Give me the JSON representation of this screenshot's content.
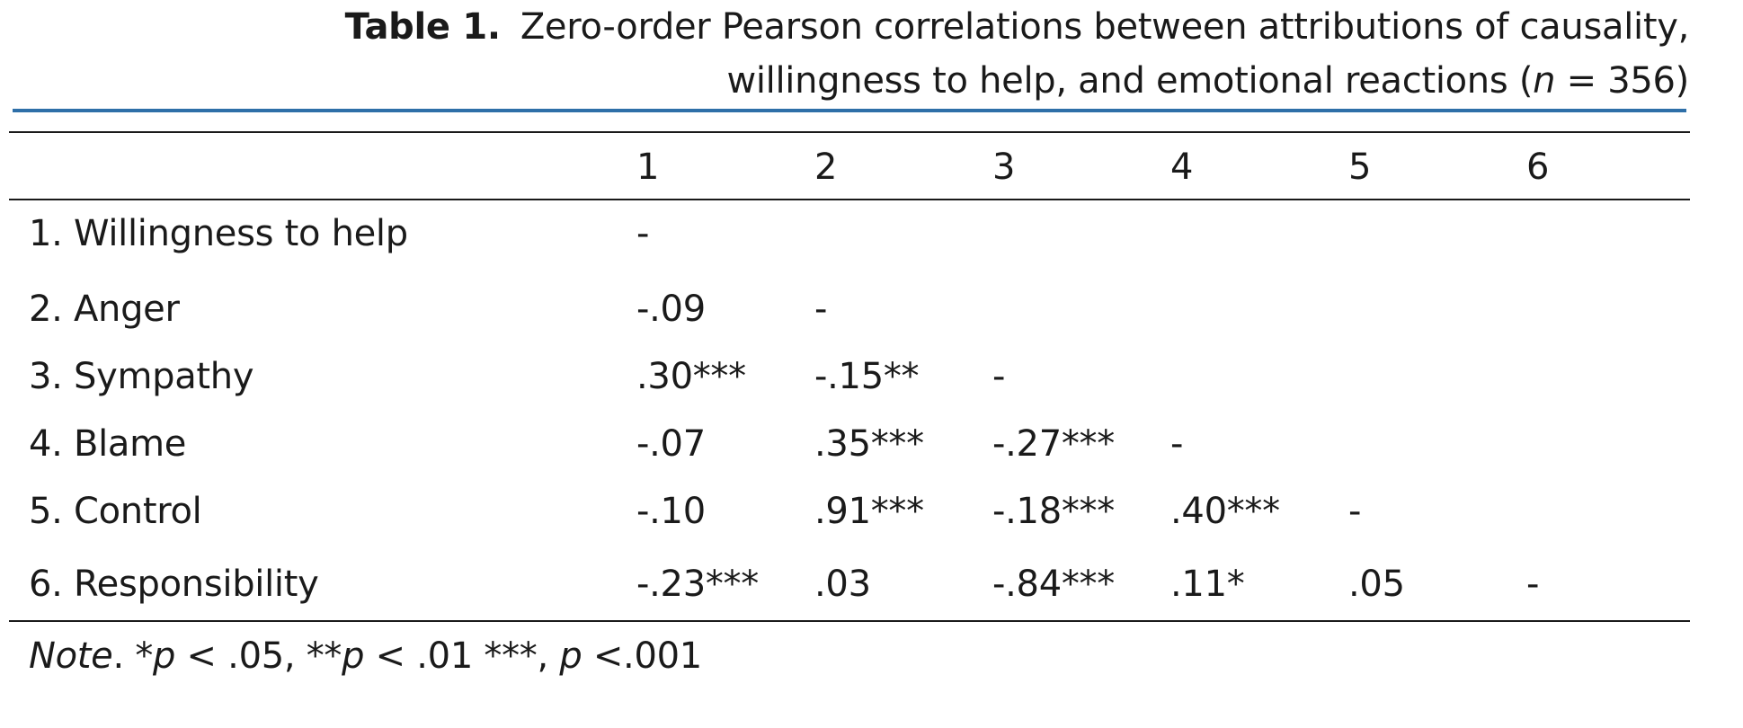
{
  "caption": {
    "label": "Table 1.",
    "line1_text": "Zero-order Pearson correlations between attributions of causality,",
    "line2_before": "willingness to help, and emotional reactions (",
    "line2_var": "n",
    "line2_after": " = 356)"
  },
  "columns": [
    "1",
    "2",
    "3",
    "4",
    "5",
    "6"
  ],
  "rows": [
    {
      "label": "1. Willingness to help",
      "cells": [
        "-",
        "",
        "",
        "",
        "",
        ""
      ]
    },
    {
      "label": "2. Anger",
      "cells": [
        "-.09",
        "-",
        "",
        "",
        "",
        ""
      ]
    },
    {
      "label": "3. Sympathy",
      "cells": [
        ".30***",
        "-.15**",
        "-",
        "",
        "",
        ""
      ]
    },
    {
      "label": "4. Blame",
      "cells": [
        "-.07",
        ".35***",
        "-.27***",
        "-",
        "",
        ""
      ]
    },
    {
      "label": "5. Control",
      "cells": [
        "-.10",
        ".91***",
        "-.18***",
        ".40***",
        "-",
        ""
      ]
    },
    {
      "label": "6. Responsibility",
      "cells": [
        "-.23***",
        ".03",
        "-.84***",
        ".11*",
        ".05",
        "-"
      ]
    }
  ],
  "note": {
    "label": "Note",
    "punct": ". *",
    "p1": "p",
    "t1": " < .05, **",
    "p2": "p",
    "t2": " < .01 ***, ",
    "p3": "p",
    "t3": " <.001"
  },
  "colors": {
    "accent_rule": "#2e6fa8",
    "text": "#1a1a1a"
  }
}
